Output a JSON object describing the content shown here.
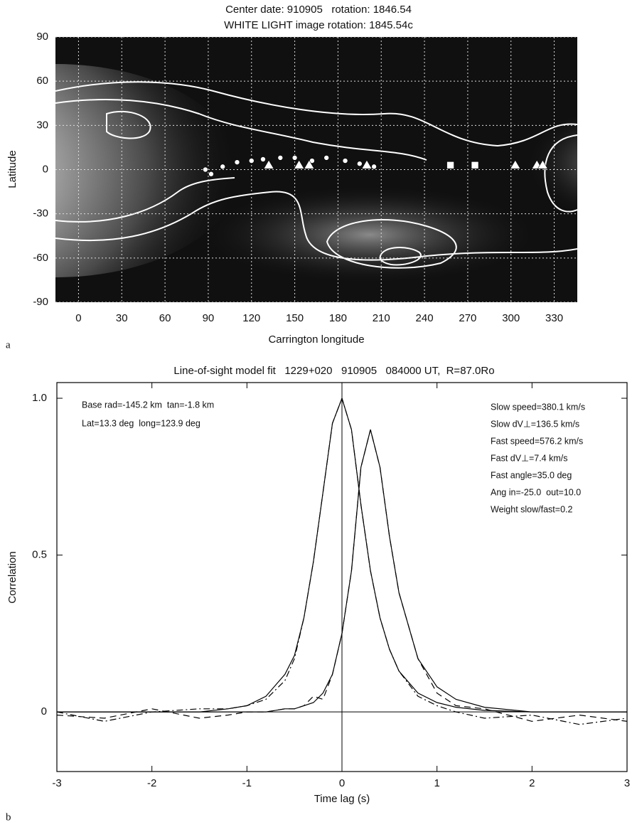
{
  "chart_data": [
    {
      "type": "map",
      "panel_label": "a",
      "title": "Center date: 910905   rotation: 1846.54",
      "subtitle": "WHITE LIGHT image rotation: 1845.54c",
      "xlabel": "Carrington longitude",
      "ylabel": "Latitude",
      "xlim": [
        -16,
        346
      ],
      "ylim": [
        -90,
        90
      ],
      "xticks": [
        0,
        30,
        60,
        90,
        120,
        150,
        180,
        210,
        240,
        270,
        300,
        330
      ],
      "yticks": [
        -90,
        -60,
        -30,
        0,
        30,
        60,
        90
      ],
      "grid": true,
      "series": [
        {
          "marker": "circle",
          "color": "#ffffff",
          "x": [
            88,
            92,
            100,
            110,
            120,
            128,
            140,
            150,
            162,
            172,
            185,
            195,
            205
          ],
          "y": [
            0,
            -3,
            2,
            5,
            6,
            7,
            8,
            8,
            6,
            8,
            6,
            4,
            2
          ]
        },
        {
          "marker": "triangle",
          "color": "#ffffff",
          "x": [
            132,
            153,
            160,
            200,
            303,
            318,
            322
          ],
          "y": [
            3,
            3,
            3,
            3,
            3,
            3,
            3
          ]
        },
        {
          "marker": "square",
          "color": "#ffffff",
          "x": [
            258,
            275
          ],
          "y": [
            3,
            3
          ]
        }
      ]
    },
    {
      "type": "line",
      "panel_label": "b",
      "title": "Line-of-sight model fit   1229+020   910905   084000 UT,  R=87.0Ro",
      "xlabel": "Time lag (s)",
      "ylabel": "Correlation",
      "annotations_left": [
        "Base rad=-145.2 km  tan=-1.8 km",
        "Lat=13.3 deg  long=123.9 deg"
      ],
      "annotations_right": [
        "Slow speed=380.1 km/s",
        "Slow dV⊥=136.5 km/s",
        "Fast speed=576.2 km/s",
        "Fast dV⊥=7.4 km/s",
        "Fast angle=35.0 deg",
        "Ang in=-25.0  out=10.0",
        "Weight slow/fast=0.2"
      ],
      "xlim": [
        -3,
        3
      ],
      "ylim": [
        -0.19,
        1.05
      ],
      "xticks": [
        -3,
        -2,
        -1,
        0,
        1,
        2,
        3
      ],
      "yticks": [
        0,
        0.5,
        {
          "value": 1,
          "label": "1.0"
        }
      ],
      "x": [
        -3,
        -2.5,
        -2,
        -1.5,
        -1.2,
        -1,
        -0.8,
        -0.6,
        -0.5,
        -0.4,
        -0.3,
        -0.2,
        -0.1,
        0,
        0.1,
        0.2,
        0.3,
        0.4,
        0.5,
        0.6,
        0.8,
        1,
        1.2,
        1.5,
        2,
        2.5,
        3
      ],
      "series": [
        {
          "color": "#000000",
          "dash": "solid",
          "values": [
            0,
            0,
            0,
            0,
            0.01,
            0.02,
            0.05,
            0.12,
            0.18,
            0.3,
            0.48,
            0.7,
            0.92,
            1.0,
            0.9,
            0.66,
            0.45,
            0.3,
            0.2,
            0.13,
            0.06,
            0.03,
            0.015,
            0.005,
            0,
            0,
            0
          ]
        },
        {
          "color": "#000000",
          "dash": "solid",
          "values": [
            0,
            0,
            0,
            0,
            0,
            0,
            0,
            0.01,
            0.01,
            0.02,
            0.03,
            0.06,
            0.12,
            0.25,
            0.45,
            0.78,
            0.9,
            0.78,
            0.56,
            0.38,
            0.17,
            0.08,
            0.04,
            0.015,
            0,
            0,
            0
          ]
        },
        {
          "color": "#000000",
          "dash": "dashdot",
          "values": [
            0,
            -0.03,
            0,
            0.01,
            0.01,
            0.02,
            0.04,
            0.1,
            0.17,
            0.3,
            0.48,
            0.7,
            0.92,
            1.0,
            0.9,
            0.66,
            0.45,
            0.3,
            0.2,
            0.13,
            0.05,
            0.02,
            0.0,
            -0.02,
            -0.01,
            -0.04,
            -0.02
          ]
        },
        {
          "color": "#000000",
          "dash": "dashed",
          "values": [
            -0.01,
            -0.02,
            0.01,
            -0.02,
            -0.01,
            0,
            0,
            0.01,
            0.01,
            0.02,
            0.05,
            0.04,
            0.12,
            0.25,
            0.45,
            0.78,
            0.9,
            0.78,
            0.56,
            0.38,
            0.17,
            0.06,
            0.02,
            0.01,
            -0.03,
            -0.01,
            -0.03
          ]
        }
      ]
    }
  ]
}
